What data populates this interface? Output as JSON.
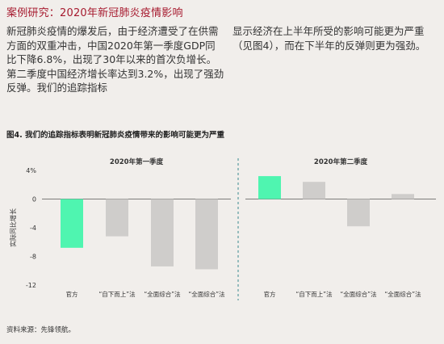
{
  "header": {
    "title": "案例研究：2020年新冠肺炎疫情影响"
  },
  "body_text": {
    "left": "新冠肺炎疫情的爆发后，由于经济遭受了在供需方面的双重冲击，中国2020年第一季度GDP同比下降6.8%，出现了30年以来的首次负增长。第二季度中国经济增长率达到3.2%，出现了强劲反弹。我们的追踪指标",
    "right": "显示经济在上半年所受的影响可能更为严重（见图4），而在下半年的反弹则更为强劲。"
  },
  "figure": {
    "title": "图4. 我们的追踪指标表明新冠肺炎疫情带来的影响可能更为严重",
    "source": "资料来源：先锋领航。"
  },
  "colors": {
    "highlight": "#4ff5b0",
    "bar": "#cfcdcb",
    "divider": "#3a8a8f",
    "title_red": "#a6192e"
  },
  "chart_data": {
    "type": "bar",
    "ylabel": "实际同比增长",
    "ylim": [
      -12,
      4
    ],
    "yticks": [
      "4%",
      "0",
      "-4",
      "-8",
      "-12"
    ],
    "ytick_values": [
      4,
      0,
      -4,
      -8,
      -12
    ],
    "grid": false,
    "panels": [
      {
        "title": "2020年第一季度",
        "categories": [
          "官方",
          "“自下而上”法",
          "“全面综合”法",
          "“全面综合”法"
        ],
        "values": [
          -6.8,
          -5.2,
          -9.4,
          -9.8
        ],
        "highlight_index": 0
      },
      {
        "title": "2020年第二季度",
        "categories": [
          "官方",
          "“自下而上”法",
          "“全面综合”法",
          "“全面综合”法"
        ],
        "values": [
          3.2,
          2.4,
          -3.8,
          0.7
        ],
        "highlight_index": 0
      }
    ]
  }
}
